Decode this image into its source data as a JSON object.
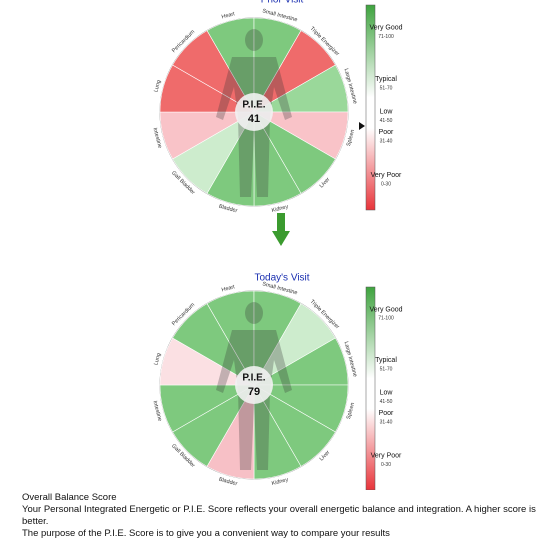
{
  "charts": [
    {
      "title": "Prior Visit",
      "center_label": "P.I.E.",
      "score": 41,
      "show_pointer": true,
      "segments": [
        "Heart",
        "Small Intestine",
        "Triple Energizer",
        "Large Intestine",
        "Spleen",
        "Liver",
        "Kidney",
        "Bladder",
        "Gall Bladder",
        "Intestine",
        "Lung",
        "Pericardium"
      ],
      "colors": [
        "#7ec97e",
        "#7ec97e",
        "#ef6b6b",
        "#9ad89a",
        "#f9c3c8",
        "#7ec97e",
        "#7ec97e",
        "#7ec97e",
        "#cdeccd",
        "#f9c3c8",
        "#ef6b6b",
        "#ef6b6b"
      ]
    },
    {
      "title": "Today's Visit",
      "center_label": "P.I.E.",
      "score": 79,
      "show_pointer": false,
      "segments": [
        "Heart",
        "Small Intestine",
        "Triple Energizer",
        "Large Intestine",
        "Spleen",
        "Liver",
        "Kidney",
        "Bladder",
        "Gall Bladder",
        "Intestine",
        "Lung",
        "Pericardium"
      ],
      "colors": [
        "#7ec97e",
        "#7ec97e",
        "#cdeccd",
        "#7ec97e",
        "#7ec97e",
        "#7ec97e",
        "#7ec97e",
        "#f7c0c6",
        "#7ec97e",
        "#7ec97e",
        "#fbe0e3",
        "#7ec97e"
      ]
    }
  ],
  "scale": [
    {
      "label": "Very Good",
      "range": "71-100"
    },
    {
      "label": "Typical",
      "range": "51-70"
    },
    {
      "label": "Low",
      "range": "41-50"
    },
    {
      "label": "Poor",
      "range": "31-40"
    },
    {
      "label": "Very Poor",
      "range": "0-30"
    }
  ],
  "footer": {
    "heading": "Overall Balance Score",
    "lines": [
      "Your Personal Integrated Energetic or P.I.E. Score reflects your overall energetic balance and integration. A higher score is better.",
      "The purpose of the P.I.E. Score is to give you a convenient way to compare your results"
    ]
  }
}
